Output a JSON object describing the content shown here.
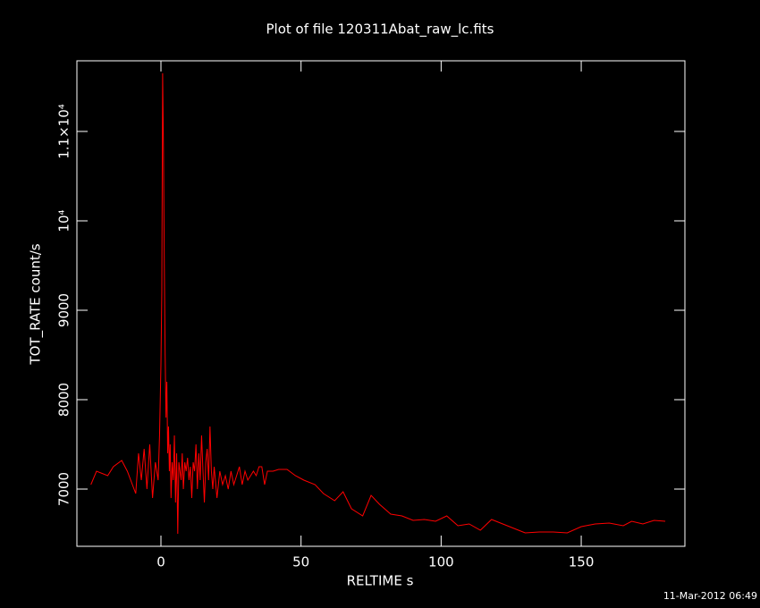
{
  "chart_data": {
    "type": "line",
    "title": "Plot of file 120311Abat_raw_lc.fits",
    "xlabel": "RELTIME  s",
    "ylabel": "TOT_RATE  count/s",
    "annotation": "11-Mar-2012 06:49",
    "xlim": [
      -30,
      187
    ],
    "ylim": [
      6360,
      11790
    ],
    "xticks": [
      0,
      50,
      100,
      150
    ],
    "yticks": [
      7000,
      8000,
      9000,
      {
        "value": 10000,
        "label": "10⁴"
      },
      {
        "value": 11000,
        "label": "1.1×10⁴"
      }
    ],
    "x": [
      -25,
      -23,
      -19,
      -17,
      -14,
      -12,
      -9,
      -8,
      -7,
      -6,
      -5,
      -4,
      -3,
      -2,
      -1,
      -0.5,
      0,
      0.3,
      0.6,
      0.9,
      1.2,
      1.5,
      1.8,
      2.1,
      2.4,
      2.7,
      3,
      3.3,
      3.6,
      4,
      4.4,
      4.8,
      5.2,
      5.6,
      6,
      6.4,
      6.8,
      7.2,
      7.6,
      8,
      8.5,
      9,
      9.5,
      10,
      10.5,
      11,
      11.5,
      12,
      12.5,
      13,
      13.5,
      14,
      14.5,
      15,
      15.5,
      16,
      16.5,
      17,
      17.5,
      18,
      18.5,
      19,
      20,
      21,
      22,
      23,
      24,
      25,
      26,
      27,
      28,
      29,
      30,
      31,
      32,
      33,
      34,
      35,
      36,
      37,
      38,
      40,
      42,
      45,
      48,
      51,
      55,
      58,
      62,
      65,
      68,
      72,
      75,
      78,
      82,
      86,
      90,
      94,
      98,
      102,
      106,
      110,
      114,
      118,
      122,
      126,
      130,
      135,
      140,
      145,
      150,
      155,
      160,
      165,
      168,
      172,
      176,
      180
    ],
    "series": [
      {
        "name": "TOT_RATE",
        "color": "#ff0000",
        "values": [
          7050,
          7200,
          7150,
          7250,
          7320,
          7200,
          6950,
          7400,
          7100,
          7450,
          7000,
          7500,
          6900,
          7300,
          7100,
          7600,
          8400,
          9200,
          11650,
          10800,
          9500,
          8500,
          7800,
          8200,
          7400,
          7700,
          7200,
          7500,
          6900,
          7300,
          7100,
          7600,
          6850,
          7400,
          6500,
          7300,
          7200,
          7100,
          7400,
          7000,
          7300,
          7200,
          7350,
          7100,
          7250,
          6900,
          7300,
          7200,
          7500,
          7000,
          7400,
          7100,
          7600,
          7200,
          6850,
          7300,
          7450,
          7100,
          7700,
          7200,
          7000,
          7250,
          6900,
          7200,
          7050,
          7150,
          7000,
          7200,
          7050,
          7150,
          7250,
          7050,
          7200,
          7100,
          7150,
          7200,
          7150,
          7250,
          7250,
          7050,
          7200,
          7200,
          7220,
          7220,
          7150,
          7100,
          7050,
          6950,
          6870,
          6970,
          6780,
          6700,
          6930,
          6830,
          6720,
          6700,
          6650,
          6660,
          6640,
          6700,
          6590,
          6610,
          6540,
          6660,
          6610,
          6560,
          6510,
          6520,
          6520,
          6510,
          6580,
          6610,
          6620,
          6590,
          6640,
          6610,
          6650,
          6640
        ]
      }
    ]
  }
}
